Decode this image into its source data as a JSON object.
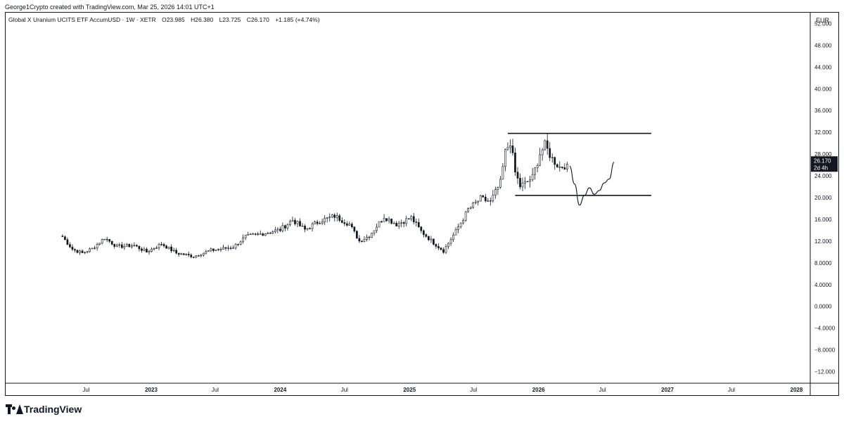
{
  "header": {
    "credit": "George1Crypto created with TradingView.com, Mar 25, 2026 14:01 UTC+1"
  },
  "legend": {
    "symbol": "Global X Uranium UCITS ETF AccumUSD · 1W · XETR",
    "open": "O23.985",
    "high": "H26.380",
    "low": "L23.725",
    "close": "C26.170",
    "change": "+1.185 (+4.74%)"
  },
  "axis": {
    "currency": "EUR",
    "price_label": "26.170",
    "countdown_label": "2d 4h"
  },
  "brand": {
    "name": "TradingView"
  },
  "chart_data": {
    "type": "candlestick",
    "interval": "1W",
    "y_axis": {
      "min": -14,
      "max": 54,
      "ticks": [
        52,
        48,
        44,
        40,
        36,
        32,
        28,
        24,
        20,
        16,
        12,
        8,
        4,
        0,
        -4,
        -8,
        -12
      ],
      "tick_labels": [
        "52.000",
        "48.000",
        "44.000",
        "40.000",
        "36.000",
        "32.000",
        "28.000",
        "24.000",
        "20.000",
        "16.000",
        "12.000",
        "8.0000",
        "4.0000",
        "0.0000",
        "−4.0000",
        "−8.0000",
        "−12.000"
      ]
    },
    "x_axis": {
      "labels": [
        {
          "label": "Jul",
          "date": "2022-07-01"
        },
        {
          "label": "2023",
          "date": "2023-01-01"
        },
        {
          "label": "Jul",
          "date": "2023-07-01"
        },
        {
          "label": "2024",
          "date": "2024-01-01"
        },
        {
          "label": "Jul",
          "date": "2024-07-01"
        },
        {
          "label": "2025",
          "date": "2025-01-01"
        },
        {
          "label": "Jul",
          "date": "2025-07-01"
        },
        {
          "label": "2026",
          "date": "2026-01-01"
        },
        {
          "label": "Jul",
          "date": "2026-07-01"
        },
        {
          "label": "2027",
          "date": "2027-01-01"
        },
        {
          "label": "Jul",
          "date": "2027-07-01"
        },
        {
          "label": "2028",
          "date": "2028-01-01"
        }
      ],
      "range": [
        "2021-11-15",
        "2028-02-07"
      ]
    },
    "price_anchors": [
      [
        "2022-04-25",
        12.8
      ],
      [
        "2022-05-23",
        10.5
      ],
      [
        "2022-06-20",
        9.8
      ],
      [
        "2022-07-18",
        10.6
      ],
      [
        "2022-08-22",
        12.6
      ],
      [
        "2022-09-26",
        11.0
      ],
      [
        "2022-11-14",
        11.2
      ],
      [
        "2022-12-19",
        10.0
      ],
      [
        "2023-01-30",
        11.5
      ],
      [
        "2023-03-13",
        9.8
      ],
      [
        "2023-05-01",
        9.2
      ],
      [
        "2023-06-19",
        10.3
      ],
      [
        "2023-08-21",
        10.9
      ],
      [
        "2023-09-25",
        12.8
      ],
      [
        "2023-11-06",
        13.3
      ],
      [
        "2024-01-01",
        14.1
      ],
      [
        "2024-02-05",
        15.9
      ],
      [
        "2024-03-11",
        14.1
      ],
      [
        "2024-04-22",
        15.7
      ],
      [
        "2024-06-03",
        16.6
      ],
      [
        "2024-07-15",
        15.1
      ],
      [
        "2024-08-12",
        12.0
      ],
      [
        "2024-09-09",
        13.0
      ],
      [
        "2024-10-21",
        16.5
      ],
      [
        "2024-11-25",
        15.1
      ],
      [
        "2025-01-06",
        16.3
      ],
      [
        "2025-02-03",
        13.8
      ],
      [
        "2025-03-10",
        11.7
      ],
      [
        "2025-04-07",
        10.2
      ],
      [
        "2025-05-12",
        13.8
      ],
      [
        "2025-06-16",
        17.8
      ],
      [
        "2025-07-21",
        19.8
      ],
      [
        "2025-08-18",
        19.2
      ],
      [
        "2025-09-15",
        22.7
      ],
      [
        "2025-09-29",
        28.3
      ],
      [
        "2025-10-13",
        30.3
      ],
      [
        "2025-10-27",
        24.6
      ],
      [
        "2025-11-10",
        22.1
      ],
      [
        "2025-11-24",
        22.6
      ],
      [
        "2025-12-15",
        23.7
      ],
      [
        "2026-01-05",
        28.1
      ],
      [
        "2026-01-19",
        29.6
      ],
      [
        "2026-02-09",
        27.1
      ],
      [
        "2026-03-02",
        25.6
      ],
      [
        "2026-03-23",
        26.17
      ]
    ],
    "annotations": {
      "horizontal_lines": [
        {
          "value": 31.8,
          "from": "2025-10-06",
          "to": "2026-11-16"
        },
        {
          "value": 20.4,
          "from": "2025-10-27",
          "to": "2026-11-16"
        }
      ],
      "projection_path": [
        [
          "2026-03-30",
          25.8
        ],
        [
          "2026-04-13",
          22.5
        ],
        [
          "2026-04-27",
          18.6
        ],
        [
          "2026-05-11",
          20.4
        ],
        [
          "2026-05-25",
          21.8
        ],
        [
          "2026-06-08",
          20.6
        ],
        [
          "2026-06-22",
          21.3
        ],
        [
          "2026-07-06",
          22.7
        ],
        [
          "2026-07-20",
          23.4
        ],
        [
          "2026-08-03",
          26.5
        ]
      ]
    },
    "last_price": 26.17
  }
}
